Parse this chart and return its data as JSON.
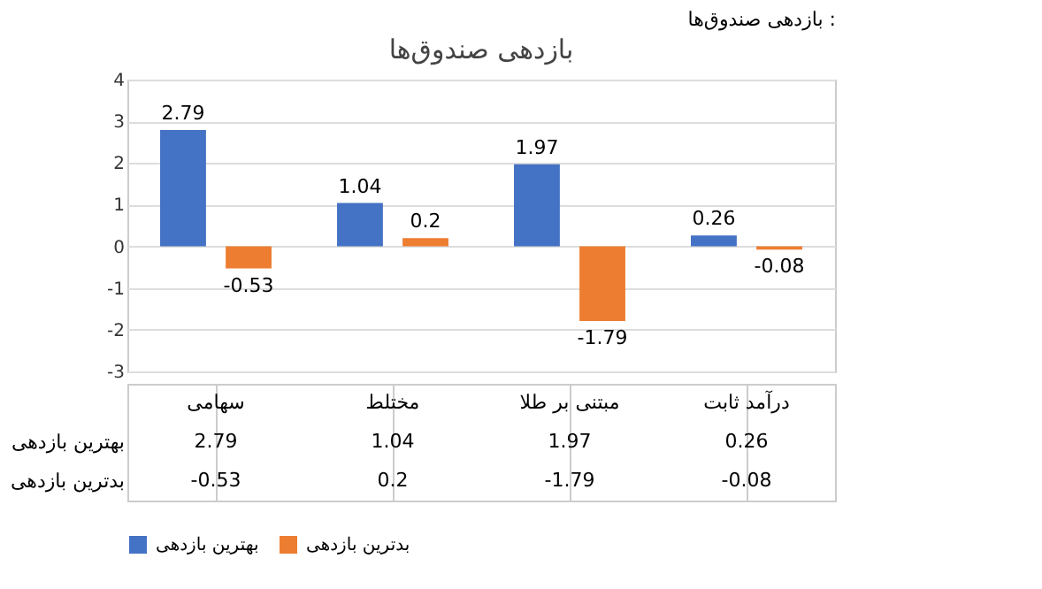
{
  "chart_data": {
    "type": "bar",
    "title": "بازدهی صندوق‌ها",
    "annotations": [
      "بازدهی صندوق‌ها :",
      "2.79",
      "1.04",
      "1.97",
      "0.26",
      "-0.53",
      "0.2",
      "-1.79",
      "-0.08"
    ],
    "categories": [
      "سهامی",
      "مختلط",
      "مبتنی بر طلا",
      "درآمد ثابت"
    ],
    "series": [
      {
        "name": "بهترین بازدهی",
        "color": "#4472c4",
        "values": [
          2.79,
          1.04,
          1.97,
          0.26
        ],
        "value_labels": [
          "2.79",
          "1.04",
          "1.97",
          "0.26"
        ]
      },
      {
        "name": "بدترین بازدهی",
        "color": "#ed7d31",
        "values": [
          -0.53,
          0.2,
          -1.79,
          -0.08
        ],
        "value_labels": [
          "-0.53",
          "0.2",
          "-1.79",
          "-0.08"
        ]
      }
    ],
    "ylim": [
      -3,
      4
    ],
    "yticks": [
      -3,
      -2,
      -1,
      0,
      1,
      2,
      3,
      4
    ],
    "grid": "y",
    "legend": "bottom",
    "data_labels": true
  }
}
